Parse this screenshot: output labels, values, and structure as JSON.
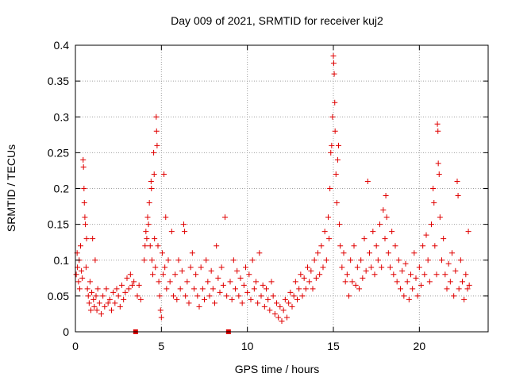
{
  "chart_data": {
    "type": "scatter",
    "title": "Day 009 of 2021, SRMTID for receiver kuj2",
    "xlabel": "GPS time / hours",
    "ylabel": "SRMTID / TECUs",
    "xlim": [
      0,
      24
    ],
    "ylim": [
      0,
      0.4
    ],
    "x_ticks": [
      0,
      5,
      10,
      15,
      20
    ],
    "x_tick_labels": [
      "0",
      "5",
      "10",
      "15",
      "20"
    ],
    "y_ticks": [
      0,
      0.05,
      0.1,
      0.15,
      0.2,
      0.25,
      0.3,
      0.35,
      0.4
    ],
    "y_tick_labels": [
      "0",
      "0.05",
      "0.1",
      "0.15",
      "0.2",
      "0.25",
      "0.3",
      "0.35",
      "0.4"
    ],
    "grid": true,
    "marker": "+",
    "color": "#e00000",
    "data_gaps_hours": [
      3.5,
      8.9
    ],
    "series": [
      {
        "name": "SRMTID",
        "points": [
          [
            0.05,
            0.08
          ],
          [
            0.1,
            0.11
          ],
          [
            0.12,
            0.09
          ],
          [
            0.18,
            0.07
          ],
          [
            0.22,
            0.1
          ],
          [
            0.25,
            0.06
          ],
          [
            0.3,
            0.12
          ],
          [
            0.35,
            0.085
          ],
          [
            0.4,
            0.075
          ],
          [
            0.45,
            0.24
          ],
          [
            0.47,
            0.23
          ],
          [
            0.5,
            0.2
          ],
          [
            0.52,
            0.18
          ],
          [
            0.55,
            0.16
          ],
          [
            0.58,
            0.15
          ],
          [
            0.62,
            0.09
          ],
          [
            0.65,
            0.13
          ],
          [
            0.7,
            0.06
          ],
          [
            0.75,
            0.05
          ],
          [
            0.8,
            0.04
          ],
          [
            0.85,
            0.07
          ],
          [
            0.9,
            0.03
          ],
          [
            0.95,
            0.055
          ],
          [
            1.0,
            0.13
          ],
          [
            1.05,
            0.045
          ],
          [
            1.1,
            0.035
          ],
          [
            1.15,
            0.1
          ],
          [
            1.2,
            0.05
          ],
          [
            1.25,
            0.03
          ],
          [
            1.3,
            0.06
          ],
          [
            1.4,
            0.04
          ],
          [
            1.5,
            0.025
          ],
          [
            1.6,
            0.05
          ],
          [
            1.7,
            0.035
          ],
          [
            1.8,
            0.06
          ],
          [
            1.9,
            0.04
          ],
          [
            2.0,
            0.045
          ],
          [
            2.1,
            0.03
          ],
          [
            2.2,
            0.055
          ],
          [
            2.3,
            0.04
          ],
          [
            2.4,
            0.06
          ],
          [
            2.5,
            0.05
          ],
          [
            2.6,
            0.035
          ],
          [
            2.7,
            0.065
          ],
          [
            2.8,
            0.045
          ],
          [
            2.9,
            0.055
          ],
          [
            3.0,
            0.075
          ],
          [
            3.1,
            0.06
          ],
          [
            3.2,
            0.08
          ],
          [
            3.3,
            0.065
          ],
          [
            3.4,
            0.07
          ],
          [
            3.6,
            0.05
          ],
          [
            3.7,
            0.065
          ],
          [
            3.8,
            0.045
          ],
          [
            4.0,
            0.1
          ],
          [
            4.05,
            0.12
          ],
          [
            4.1,
            0.14
          ],
          [
            4.15,
            0.13
          ],
          [
            4.2,
            0.16
          ],
          [
            4.25,
            0.15
          ],
          [
            4.3,
            0.18
          ],
          [
            4.35,
            0.12
          ],
          [
            4.4,
            0.21
          ],
          [
            4.42,
            0.2
          ],
          [
            4.45,
            0.1
          ],
          [
            4.5,
            0.08
          ],
          [
            4.55,
            0.25
          ],
          [
            4.58,
            0.22
          ],
          [
            4.6,
            0.13
          ],
          [
            4.65,
            0.09
          ],
          [
            4.7,
            0.3
          ],
          [
            4.72,
            0.28
          ],
          [
            4.75,
            0.26
          ],
          [
            4.8,
            0.12
          ],
          [
            4.85,
            0.07
          ],
          [
            4.9,
            0.05
          ],
          [
            4.95,
            0.03
          ],
          [
            5.0,
            0.02
          ],
          [
            5.05,
            0.11
          ],
          [
            5.1,
            0.08
          ],
          [
            5.15,
            0.22
          ],
          [
            5.2,
            0.09
          ],
          [
            5.25,
            0.16
          ],
          [
            5.3,
            0.06
          ],
          [
            5.4,
            0.1
          ],
          [
            5.5,
            0.07
          ],
          [
            5.6,
            0.14
          ],
          [
            5.7,
            0.05
          ],
          [
            5.8,
            0.08
          ],
          [
            5.9,
            0.045
          ],
          [
            6.0,
            0.1
          ],
          [
            6.1,
            0.06
          ],
          [
            6.2,
            0.085
          ],
          [
            6.3,
            0.15
          ],
          [
            6.35,
            0.14
          ],
          [
            6.4,
            0.05
          ],
          [
            6.5,
            0.07
          ],
          [
            6.6,
            0.04
          ],
          [
            6.7,
            0.09
          ],
          [
            6.8,
            0.11
          ],
          [
            6.9,
            0.06
          ],
          [
            7.0,
            0.08
          ],
          [
            7.1,
            0.05
          ],
          [
            7.2,
            0.035
          ],
          [
            7.3,
            0.09
          ],
          [
            7.4,
            0.06
          ],
          [
            7.5,
            0.045
          ],
          [
            7.6,
            0.1
          ],
          [
            7.7,
            0.07
          ],
          [
            7.8,
            0.05
          ],
          [
            7.9,
            0.085
          ],
          [
            8.0,
            0.06
          ],
          [
            8.1,
            0.04
          ],
          [
            8.2,
            0.12
          ],
          [
            8.3,
            0.075
          ],
          [
            8.4,
            0.055
          ],
          [
            8.5,
            0.09
          ],
          [
            8.6,
            0.065
          ],
          [
            8.7,
            0.16
          ],
          [
            8.8,
            0.05
          ],
          [
            9.0,
            0.07
          ],
          [
            9.1,
            0.045
          ],
          [
            9.2,
            0.1
          ],
          [
            9.3,
            0.06
          ],
          [
            9.4,
            0.085
          ],
          [
            9.5,
            0.05
          ],
          [
            9.6,
            0.075
          ],
          [
            9.7,
            0.04
          ],
          [
            9.8,
            0.065
          ],
          [
            9.9,
            0.09
          ],
          [
            10.0,
            0.055
          ],
          [
            10.1,
            0.08
          ],
          [
            10.2,
            0.045
          ],
          [
            10.3,
            0.1
          ],
          [
            10.4,
            0.06
          ],
          [
            10.5,
            0.07
          ],
          [
            10.6,
            0.04
          ],
          [
            10.7,
            0.11
          ],
          [
            10.8,
            0.05
          ],
          [
            10.9,
            0.065
          ],
          [
            11.0,
            0.035
          ],
          [
            11.1,
            0.06
          ],
          [
            11.2,
            0.045
          ],
          [
            11.3,
            0.03
          ],
          [
            11.4,
            0.07
          ],
          [
            11.5,
            0.05
          ],
          [
            11.6,
            0.025
          ],
          [
            11.7,
            0.04
          ],
          [
            11.8,
            0.02
          ],
          [
            11.9,
            0.035
          ],
          [
            12.0,
            0.015
          ],
          [
            12.1,
            0.03
          ],
          [
            12.2,
            0.045
          ],
          [
            12.3,
            0.02
          ],
          [
            12.4,
            0.04
          ],
          [
            12.5,
            0.055
          ],
          [
            12.6,
            0.035
          ],
          [
            12.7,
            0.05
          ],
          [
            12.8,
            0.07
          ],
          [
            12.9,
            0.045
          ],
          [
            13.0,
            0.06
          ],
          [
            13.1,
            0.08
          ],
          [
            13.2,
            0.05
          ],
          [
            13.3,
            0.075
          ],
          [
            13.4,
            0.06
          ],
          [
            13.5,
            0.09
          ],
          [
            13.6,
            0.07
          ],
          [
            13.7,
            0.085
          ],
          [
            13.8,
            0.06
          ],
          [
            13.9,
            0.1
          ],
          [
            14.0,
            0.075
          ],
          [
            14.1,
            0.11
          ],
          [
            14.2,
            0.08
          ],
          [
            14.3,
            0.12
          ],
          [
            14.4,
            0.09
          ],
          [
            14.5,
            0.14
          ],
          [
            14.6,
            0.1
          ],
          [
            14.7,
            0.16
          ],
          [
            14.75,
            0.13
          ],
          [
            14.8,
            0.2
          ],
          [
            14.85,
            0.25
          ],
          [
            14.9,
            0.26
          ],
          [
            14.95,
            0.3
          ],
          [
            15.0,
            0.385
          ],
          [
            15.02,
            0.375
          ],
          [
            15.05,
            0.36
          ],
          [
            15.08,
            0.32
          ],
          [
            15.1,
            0.28
          ],
          [
            15.15,
            0.22
          ],
          [
            15.2,
            0.18
          ],
          [
            15.25,
            0.24
          ],
          [
            15.3,
            0.26
          ],
          [
            15.35,
            0.15
          ],
          [
            15.4,
            0.12
          ],
          [
            15.5,
            0.09
          ],
          [
            15.6,
            0.11
          ],
          [
            15.7,
            0.07
          ],
          [
            15.8,
            0.08
          ],
          [
            15.9,
            0.05
          ],
          [
            16.0,
            0.1
          ],
          [
            16.1,
            0.07
          ],
          [
            16.2,
            0.12
          ],
          [
            16.3,
            0.065
          ],
          [
            16.4,
            0.09
          ],
          [
            16.5,
            0.06
          ],
          [
            16.6,
            0.1
          ],
          [
            16.7,
            0.075
          ],
          [
            16.8,
            0.13
          ],
          [
            16.9,
            0.085
          ],
          [
            17.0,
            0.21
          ],
          [
            17.1,
            0.11
          ],
          [
            17.2,
            0.09
          ],
          [
            17.3,
            0.14
          ],
          [
            17.4,
            0.08
          ],
          [
            17.5,
            0.12
          ],
          [
            17.6,
            0.1
          ],
          [
            17.7,
            0.15
          ],
          [
            17.8,
            0.09
          ],
          [
            17.9,
            0.17
          ],
          [
            18.0,
            0.13
          ],
          [
            18.05,
            0.19
          ],
          [
            18.1,
            0.16
          ],
          [
            18.2,
            0.11
          ],
          [
            18.3,
            0.09
          ],
          [
            18.4,
            0.14
          ],
          [
            18.5,
            0.08
          ],
          [
            18.6,
            0.12
          ],
          [
            18.7,
            0.07
          ],
          [
            18.8,
            0.1
          ],
          [
            18.9,
            0.06
          ],
          [
            19.0,
            0.085
          ],
          [
            19.1,
            0.05
          ],
          [
            19.2,
            0.095
          ],
          [
            19.3,
            0.07
          ],
          [
            19.4,
            0.045
          ],
          [
            19.5,
            0.08
          ],
          [
            19.6,
            0.06
          ],
          [
            19.7,
            0.11
          ],
          [
            19.8,
            0.075
          ],
          [
            19.9,
            0.05
          ],
          [
            20.0,
            0.09
          ],
          [
            20.1,
            0.065
          ],
          [
            20.2,
            0.12
          ],
          [
            20.3,
            0.08
          ],
          [
            20.4,
            0.135
          ],
          [
            20.5,
            0.1
          ],
          [
            20.6,
            0.07
          ],
          [
            20.7,
            0.15
          ],
          [
            20.8,
            0.2
          ],
          [
            20.85,
            0.18
          ],
          [
            20.9,
            0.12
          ],
          [
            21.0,
            0.08
          ],
          [
            21.05,
            0.29
          ],
          [
            21.08,
            0.28
          ],
          [
            21.1,
            0.235
          ],
          [
            21.15,
            0.22
          ],
          [
            21.2,
            0.16
          ],
          [
            21.3,
            0.1
          ],
          [
            21.4,
            0.13
          ],
          [
            21.5,
            0.08
          ],
          [
            21.6,
            0.06
          ],
          [
            21.7,
            0.095
          ],
          [
            21.8,
            0.07
          ],
          [
            21.9,
            0.11
          ],
          [
            22.0,
            0.05
          ],
          [
            22.1,
            0.085
          ],
          [
            22.2,
            0.21
          ],
          [
            22.25,
            0.19
          ],
          [
            22.3,
            0.06
          ],
          [
            22.4,
            0.1
          ],
          [
            22.5,
            0.07
          ],
          [
            22.6,
            0.045
          ],
          [
            22.7,
            0.08
          ],
          [
            22.8,
            0.06
          ],
          [
            22.85,
            0.14
          ],
          [
            22.9,
            0.065
          ]
        ]
      }
    ]
  }
}
